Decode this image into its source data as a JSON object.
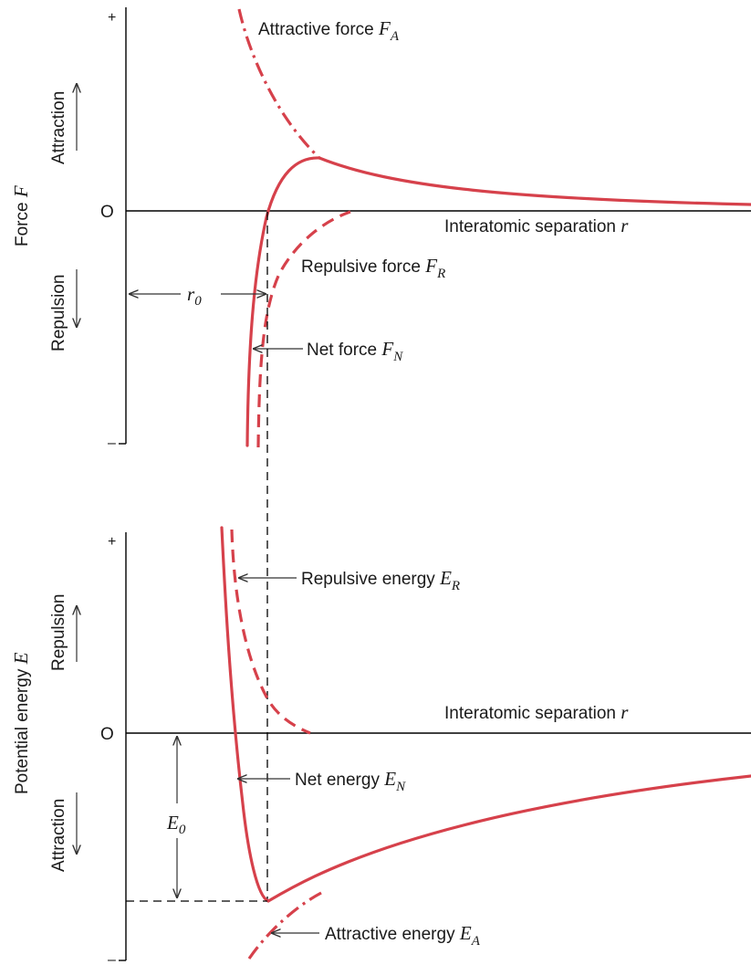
{
  "top_panel": {
    "y_axis_label": "Force",
    "y_axis_symbol": "F",
    "plus_sign": "+",
    "minus_sign": "–",
    "zero_label": "O",
    "upper_direction": "Attraction",
    "lower_direction": "Repulsion",
    "x_axis_label": "Interatomic separation",
    "x_axis_symbol": "r",
    "equilibrium_symbol": "r",
    "equilibrium_subscript": "0",
    "curves": {
      "attractive": {
        "label": "Attractive force",
        "symbol": "F",
        "subscript": "A"
      },
      "repulsive": {
        "label": "Repulsive force",
        "symbol": "F",
        "subscript": "R"
      },
      "net": {
        "label": "Net force",
        "symbol": "F",
        "subscript": "N"
      }
    }
  },
  "bottom_panel": {
    "y_axis_label": "Potential energy",
    "y_axis_symbol": "E",
    "plus_sign": "+",
    "minus_sign": "–",
    "zero_label": "O",
    "upper_direction": "Repulsion",
    "lower_direction": "Attraction",
    "x_axis_label": "Interatomic separation",
    "x_axis_symbol": "r",
    "well_depth_symbol": "E",
    "well_depth_subscript": "0",
    "curves": {
      "repulsive": {
        "label": "Repulsive energy",
        "symbol": "E",
        "subscript": "R"
      },
      "net": {
        "label": "Net energy",
        "symbol": "E",
        "subscript": "N"
      },
      "attractive": {
        "label": "Attractive energy",
        "symbol": "E",
        "subscript": "A"
      }
    }
  },
  "colors": {
    "curve": "#d6414b",
    "axis": "#000000",
    "text": "#1a1a1a"
  }
}
